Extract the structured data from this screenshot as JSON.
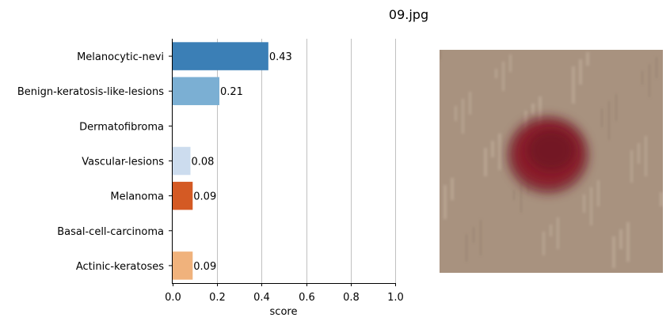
{
  "figure": {
    "title": "09.jpg",
    "photo_caption": "skin lesion photo",
    "photo_colors": {
      "background": "#a8927f",
      "background_light": "#c4b2a0",
      "lesion": "#8a1f2a",
      "lesion_dark": "#6b1420"
    }
  },
  "chart_data": {
    "type": "bar",
    "orientation": "horizontal",
    "categories": [
      "Melanocytic-nevi",
      "Benign-keratosis-like-lesions",
      "Dermatofibroma",
      "Vascular-lesions",
      "Melanoma",
      "Basal-cell-carcinoma",
      "Actinic-keratoses"
    ],
    "values": [
      0.43,
      0.21,
      0,
      0.08,
      0.09,
      0,
      0.09
    ],
    "data_labels": [
      "0.43",
      "0.21",
      "",
      "0.08",
      "0.09",
      "",
      "0.09"
    ],
    "colors": [
      "#3b7fb6",
      "#7bafd3",
      "#a9cbe5",
      "#ccdcee",
      "#d45a24",
      "#f28d45",
      "#f0b27c"
    ],
    "xlabel": "score",
    "ylabel": "",
    "xlim": [
      0,
      1.0
    ],
    "xticks": [
      "0.0",
      "0.2",
      "0.4",
      "0.6",
      "0.8",
      "1.0"
    ],
    "grid": "vertical",
    "legend": "none"
  }
}
